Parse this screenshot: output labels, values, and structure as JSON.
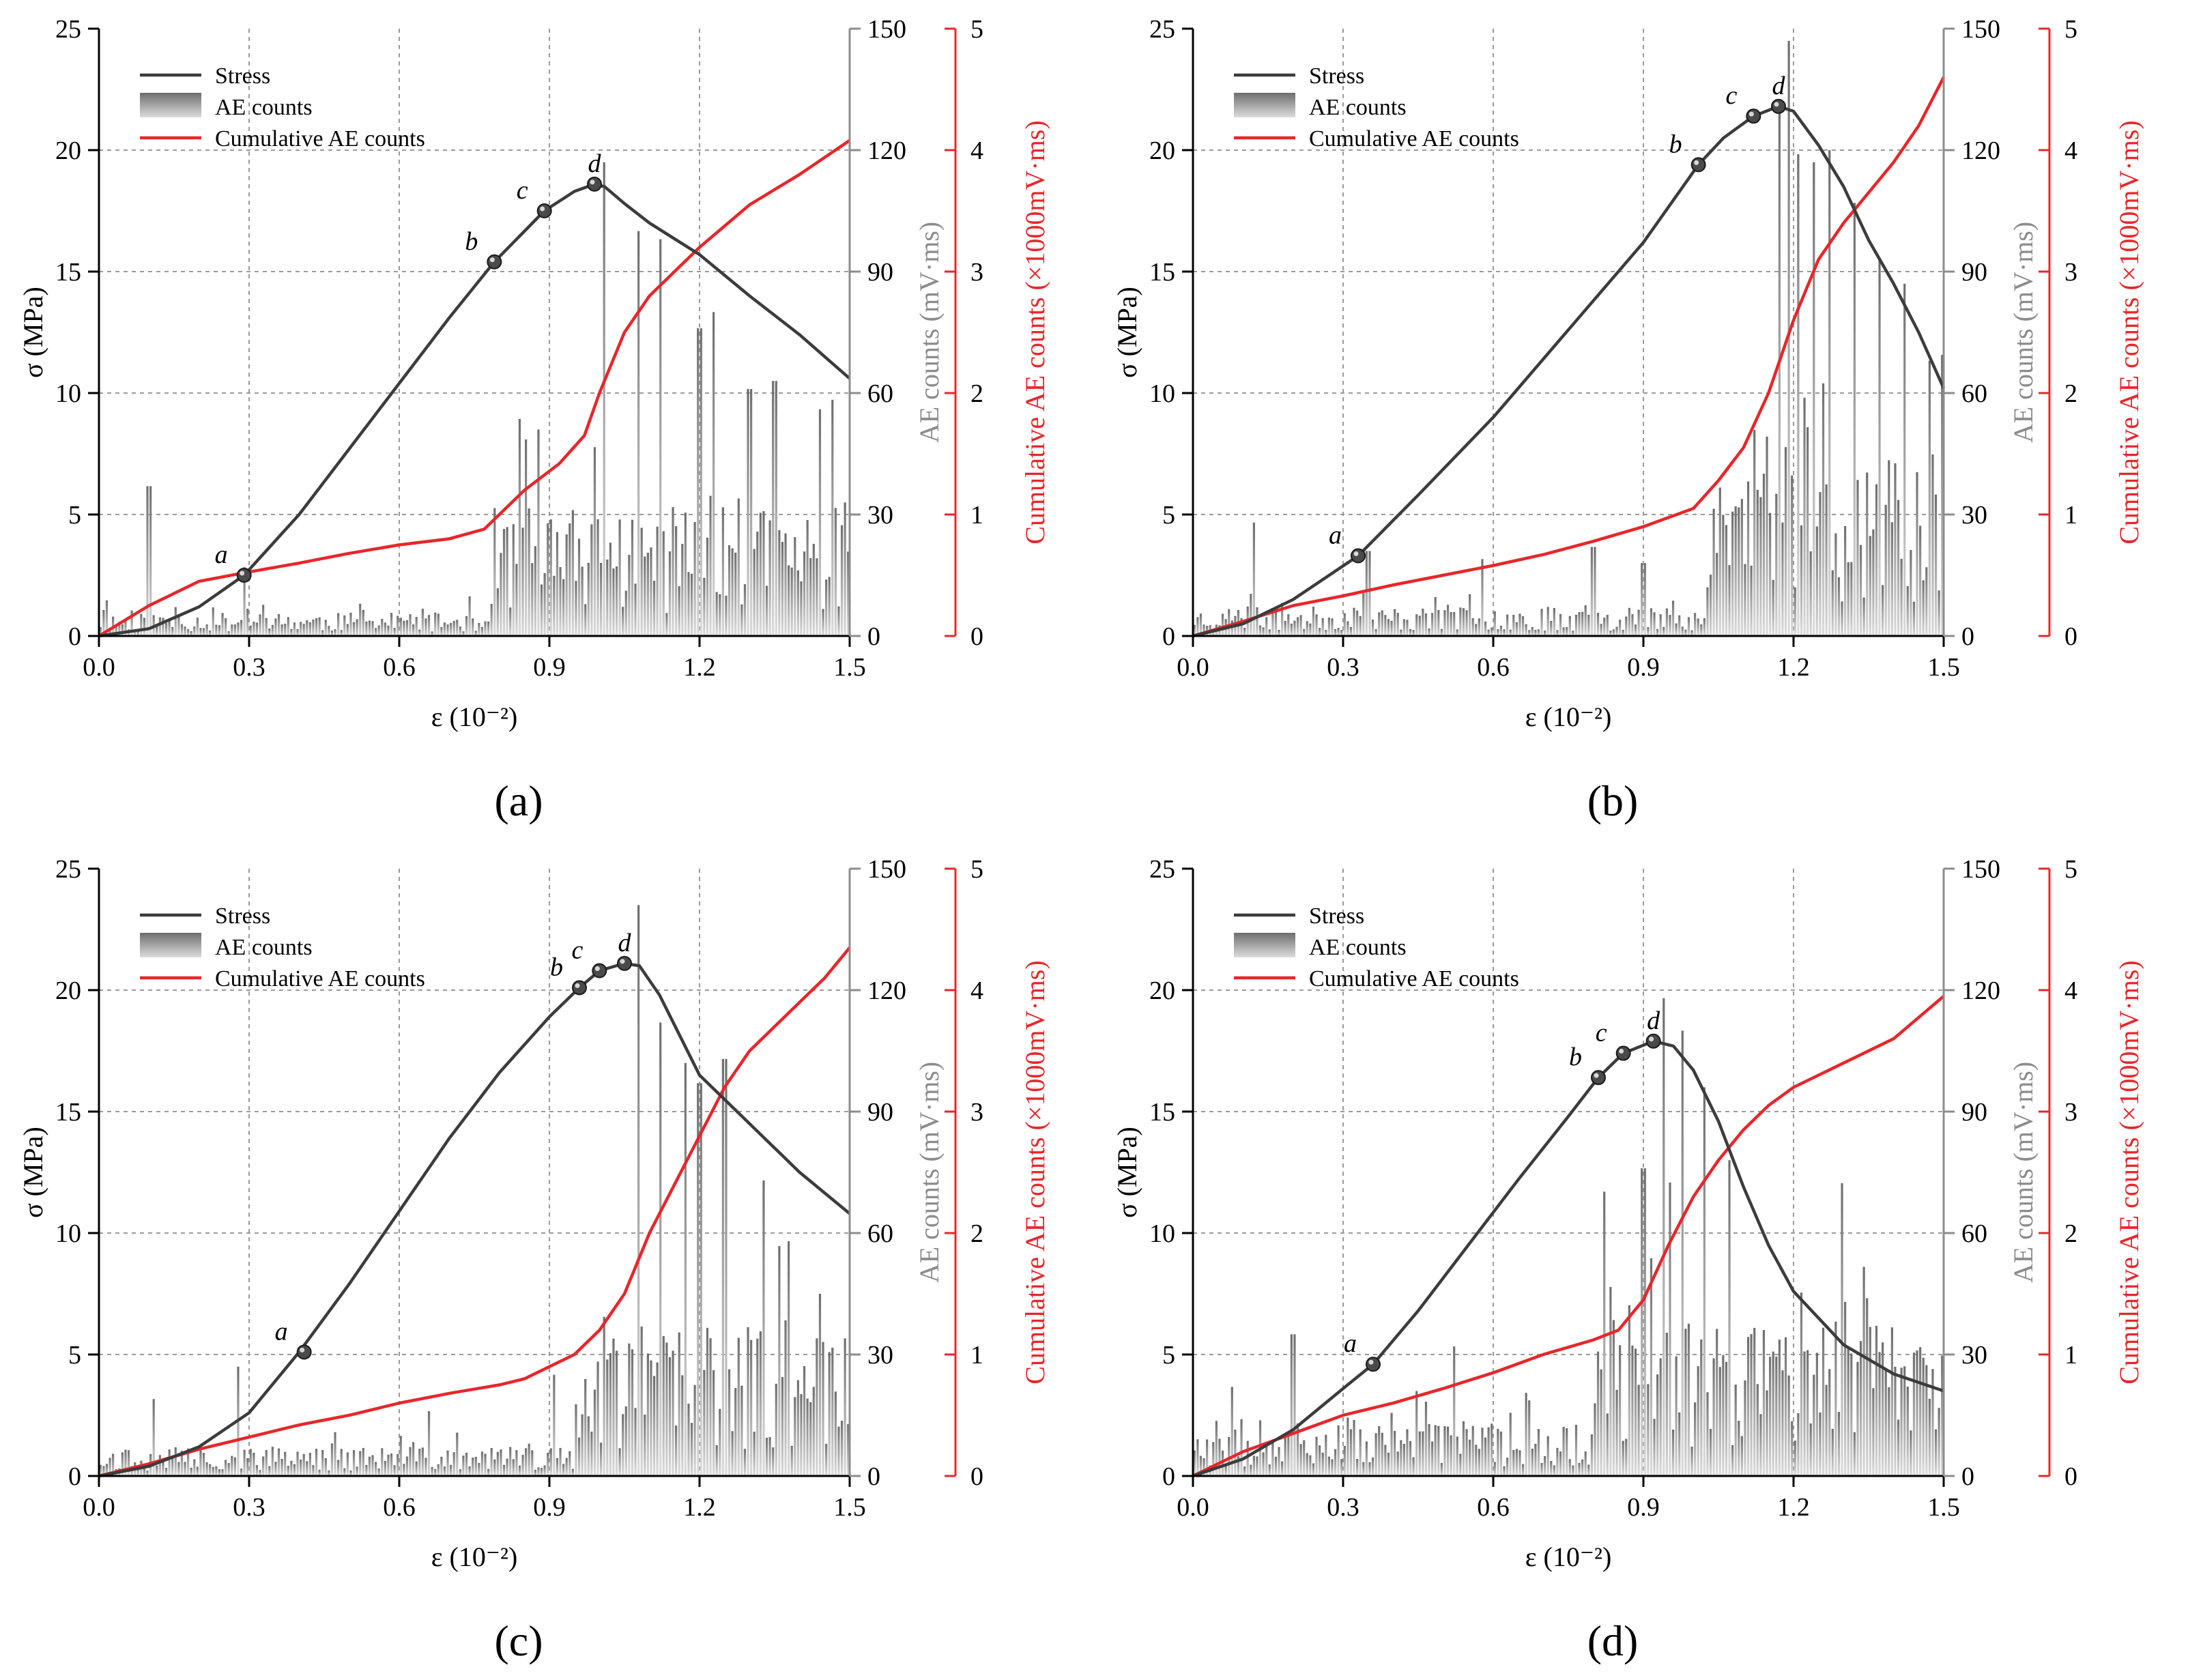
{
  "chart_data": [
    {
      "type": "line",
      "panel_label": "(a)",
      "panel_letter": "a",
      "xlabel": "ε (10⁻²)",
      "ylabel": "σ (MPa)",
      "y2label": "AE counts (mV·ms)",
      "y3label": "Cumulative AE counts (×1000mV·ms)",
      "xlim": [
        0,
        1.5
      ],
      "ylim": [
        0,
        25
      ],
      "y2lim": [
        0,
        150
      ],
      "y3lim": [
        0,
        5
      ],
      "xticks": [
        "0.0",
        "0.3",
        "0.6",
        "0.9",
        "1.2",
        "1.5"
      ],
      "yticks": [
        "0",
        "5",
        "10",
        "15",
        "20",
        "25"
      ],
      "y2ticks": [
        "0",
        "30",
        "60",
        "90",
        "120",
        "150"
      ],
      "y3ticks": [
        "0",
        "1",
        "2",
        "3",
        "4",
        "5"
      ],
      "grid": true,
      "legend_position": "top-left",
      "legend": [
        "Stress",
        "AE counts",
        "Cumulative AE counts"
      ],
      "colors": {
        "stress": "#3c3c3c",
        "ae": "#8a8a8a",
        "cumulative": "#e8262a",
        "y2axis": "#8c8c8c",
        "y3axis": "#e8262a"
      },
      "stress": {
        "x": [
          0,
          0.1,
          0.2,
          0.29,
          0.4,
          0.5,
          0.6,
          0.7,
          0.79,
          0.89,
          0.95,
          0.99,
          1.01,
          1.05,
          1.1,
          1.2,
          1.3,
          1.4,
          1.5
        ],
        "y": [
          0,
          0.3,
          1.2,
          2.5,
          5,
          7.7,
          10.4,
          13.1,
          15.4,
          17.5,
          18.3,
          18.6,
          18.5,
          17.8,
          17.0,
          15.7,
          14.0,
          12.4,
          10.6
        ]
      },
      "cumulative": {
        "x": [
          0,
          0.1,
          0.2,
          0.29,
          0.4,
          0.5,
          0.6,
          0.7,
          0.77,
          0.85,
          0.92,
          0.97,
          1.0,
          1.05,
          1.1,
          1.2,
          1.3,
          1.4,
          1.5
        ],
        "y": [
          0,
          0.25,
          0.45,
          0.52,
          0.6,
          0.68,
          0.75,
          0.8,
          0.88,
          1.2,
          1.42,
          1.65,
          2.0,
          2.5,
          2.8,
          3.2,
          3.55,
          3.8,
          4.08
        ]
      },
      "key_points": [
        {
          "label": "a",
          "x": 0.29,
          "y": 2.5
        },
        {
          "label": "b",
          "x": 0.79,
          "y": 15.4
        },
        {
          "label": "c",
          "x": 0.89,
          "y": 17.5
        },
        {
          "label": "d",
          "x": 0.99,
          "y": 18.6
        }
      ],
      "ae": {
        "x_start": 0.0,
        "x_end": 1.5,
        "n": 240,
        "base_before": 4,
        "base_after": 22,
        "jump_at": 0.78,
        "noise": 0.8,
        "seed": 11,
        "spikes": [
          {
            "x": 0.1,
            "v": 37
          },
          {
            "x": 0.29,
            "v": 17
          },
          {
            "x": 0.88,
            "v": 51
          },
          {
            "x": 1.01,
            "v": 117
          },
          {
            "x": 1.08,
            "v": 100
          },
          {
            "x": 1.12,
            "v": 98
          },
          {
            "x": 1.2,
            "v": 76
          },
          {
            "x": 1.23,
            "v": 80
          },
          {
            "x": 1.3,
            "v": 61
          },
          {
            "x": 1.35,
            "v": 63
          },
          {
            "x": 1.44,
            "v": 56
          },
          {
            "x": 1.49,
            "v": 33
          }
        ]
      }
    },
    {
      "type": "line",
      "panel_label": "(b)",
      "panel_letter": "b",
      "xlabel": "ε (10⁻²)",
      "ylabel": "σ (MPa)",
      "y2label": "AE counts (mV·ms)",
      "y3label": "Cumulative AE counts (×1000mV·ms)",
      "xlim": [
        0,
        1.5
      ],
      "ylim": [
        0,
        25
      ],
      "y2lim": [
        0,
        150
      ],
      "y3lim": [
        0,
        5
      ],
      "xticks": [
        "0.0",
        "0.3",
        "0.6",
        "0.9",
        "1.2",
        "1.5"
      ],
      "yticks": [
        "0",
        "5",
        "10",
        "15",
        "20",
        "25"
      ],
      "y2ticks": [
        "0",
        "30",
        "60",
        "90",
        "120",
        "150"
      ],
      "y3ticks": [
        "0",
        "1",
        "2",
        "3",
        "4",
        "5"
      ],
      "grid": true,
      "legend_position": "top-left",
      "legend": [
        "Stress",
        "AE counts",
        "Cumulative AE counts"
      ],
      "colors": {
        "stress": "#3c3c3c",
        "ae": "#8a8a8a",
        "cumulative": "#e8262a",
        "y2axis": "#8c8c8c",
        "y3axis": "#e8262a"
      },
      "stress": {
        "x": [
          0,
          0.1,
          0.2,
          0.33,
          0.45,
          0.6,
          0.75,
          0.9,
          1.01,
          1.06,
          1.12,
          1.17,
          1.2,
          1.25,
          1.3,
          1.35,
          1.4,
          1.45,
          1.5
        ],
        "y": [
          0,
          0.5,
          1.5,
          3.3,
          5.8,
          9.0,
          12.6,
          16.2,
          19.4,
          20.5,
          21.4,
          21.8,
          21.6,
          20.2,
          18.5,
          16.3,
          14.5,
          12.5,
          10.2
        ]
      },
      "cumulative": {
        "x": [
          0,
          0.1,
          0.2,
          0.3,
          0.4,
          0.5,
          0.6,
          0.7,
          0.8,
          0.9,
          1.0,
          1.05,
          1.1,
          1.15,
          1.2,
          1.25,
          1.3,
          1.35,
          1.4,
          1.45,
          1.5
        ],
        "y": [
          0,
          0.12,
          0.25,
          0.33,
          0.42,
          0.5,
          0.58,
          0.67,
          0.78,
          0.9,
          1.05,
          1.28,
          1.55,
          2.0,
          2.6,
          3.1,
          3.4,
          3.65,
          3.9,
          4.2,
          4.6
        ]
      },
      "key_points": [
        {
          "label": "a",
          "x": 0.33,
          "y": 3.3
        },
        {
          "label": "b",
          "x": 1.01,
          "y": 19.4
        },
        {
          "label": "c",
          "x": 1.12,
          "y": 21.4
        },
        {
          "label": "d",
          "x": 1.17,
          "y": 21.8
        }
      ],
      "ae": {
        "x_start": 0.0,
        "x_end": 1.5,
        "n": 240,
        "base_before": 5,
        "base_after": 32,
        "jump_at": 1.03,
        "noise": 0.8,
        "seed": 23,
        "spikes": [
          {
            "x": 0.12,
            "v": 28
          },
          {
            "x": 0.35,
            "v": 21
          },
          {
            "x": 0.58,
            "v": 19
          },
          {
            "x": 0.8,
            "v": 22
          },
          {
            "x": 0.9,
            "v": 18
          },
          {
            "x": 1.17,
            "v": 130
          },
          {
            "x": 1.19,
            "v": 147
          },
          {
            "x": 1.21,
            "v": 119
          },
          {
            "x": 1.24,
            "v": 117
          },
          {
            "x": 1.27,
            "v": 120
          },
          {
            "x": 1.32,
            "v": 107
          },
          {
            "x": 1.37,
            "v": 93
          },
          {
            "x": 1.42,
            "v": 87
          },
          {
            "x": 1.47,
            "v": 68
          }
        ]
      }
    },
    {
      "type": "line",
      "panel_label": "(c)",
      "panel_letter": "c",
      "xlabel": "ε (10⁻²)",
      "ylabel": "σ (MPa)",
      "y2label": "AE counts (mV·ms)",
      "y3label": "Cumulative AE counts (×1000mV·ms)",
      "xlim": [
        0,
        1.5
      ],
      "ylim": [
        0,
        25
      ],
      "y2lim": [
        0,
        150
      ],
      "y3lim": [
        0,
        5
      ],
      "xticks": [
        "0.0",
        "0.3",
        "0.6",
        "0.9",
        "1.2",
        "1.5"
      ],
      "yticks": [
        "0",
        "5",
        "10",
        "15",
        "20",
        "25"
      ],
      "y2ticks": [
        "0",
        "30",
        "60",
        "90",
        "120",
        "150"
      ],
      "y3ticks": [
        "0",
        "1",
        "2",
        "3",
        "4",
        "5"
      ],
      "grid": true,
      "legend_position": "top-left",
      "legend": [
        "Stress",
        "AE counts",
        "Cumulative AE counts"
      ],
      "colors": {
        "stress": "#3c3c3c",
        "ae": "#8a8a8a",
        "cumulative": "#e8262a",
        "y2axis": "#8c8c8c",
        "y3axis": "#e8262a"
      },
      "stress": {
        "x": [
          0,
          0.1,
          0.2,
          0.3,
          0.4,
          0.5,
          0.6,
          0.7,
          0.8,
          0.9,
          0.96,
          1.0,
          1.05,
          1.08,
          1.12,
          1.2,
          1.3,
          1.4,
          1.5
        ],
        "y": [
          0,
          0.4,
          1.2,
          2.6,
          5.1,
          7.9,
          10.9,
          13.9,
          16.6,
          18.9,
          20.1,
          20.8,
          21.1,
          21.0,
          19.8,
          16.5,
          14.5,
          12.5,
          10.8
        ]
      },
      "cumulative": {
        "x": [
          0,
          0.1,
          0.2,
          0.3,
          0.4,
          0.5,
          0.6,
          0.7,
          0.8,
          0.85,
          0.9,
          0.95,
          1.0,
          1.05,
          1.1,
          1.15,
          1.2,
          1.25,
          1.3,
          1.35,
          1.4,
          1.45,
          1.5
        ],
        "y": [
          0,
          0.1,
          0.22,
          0.32,
          0.42,
          0.5,
          0.6,
          0.68,
          0.75,
          0.8,
          0.9,
          1.0,
          1.2,
          1.5,
          2.0,
          2.4,
          2.8,
          3.2,
          3.5,
          3.7,
          3.9,
          4.1,
          4.35
        ]
      },
      "key_points": [
        {
          "label": "a",
          "x": 0.41,
          "y": 5.1
        },
        {
          "label": "b",
          "x": 0.96,
          "y": 20.1
        },
        {
          "label": "c",
          "x": 1.0,
          "y": 20.8
        },
        {
          "label": "d",
          "x": 1.05,
          "y": 21.1
        }
      ],
      "ae": {
        "x_start": 0.0,
        "x_end": 1.5,
        "n": 240,
        "base_before": 5,
        "base_after": 26,
        "jump_at": 0.95,
        "noise": 0.8,
        "seed": 37,
        "spikes": [
          {
            "x": 0.11,
            "v": 19
          },
          {
            "x": 0.28,
            "v": 27
          },
          {
            "x": 0.66,
            "v": 16
          },
          {
            "x": 0.91,
            "v": 25
          },
          {
            "x": 1.08,
            "v": 141
          },
          {
            "x": 1.12,
            "v": 112
          },
          {
            "x": 1.17,
            "v": 102
          },
          {
            "x": 1.2,
            "v": 97
          },
          {
            "x": 1.25,
            "v": 103
          },
          {
            "x": 1.33,
            "v": 73
          },
          {
            "x": 1.38,
            "v": 58
          },
          {
            "x": 1.44,
            "v": 45
          },
          {
            "x": 1.49,
            "v": 34
          }
        ]
      }
    },
    {
      "type": "line",
      "panel_label": "(d)",
      "panel_letter": "d",
      "xlabel": "ε (10⁻²)",
      "ylabel": "σ (MPa)",
      "y2label": "AE counts (mV·ms)",
      "y3label": "Cumulative AE counts (×1000mV·ms)",
      "xlim": [
        0,
        1.5
      ],
      "ylim": [
        0,
        25
      ],
      "y2lim": [
        0,
        150
      ],
      "y3lim": [
        0,
        5
      ],
      "xticks": [
        "0.0",
        "0.3",
        "0.6",
        "0.9",
        "1.2",
        "1.5"
      ],
      "yticks": [
        "0",
        "5",
        "10",
        "15",
        "20",
        "25"
      ],
      "y2ticks": [
        "0",
        "30",
        "60",
        "90",
        "120",
        "150"
      ],
      "y3ticks": [
        "0",
        "1",
        "2",
        "3",
        "4",
        "5"
      ],
      "grid": true,
      "legend_position": "top-left",
      "legend": [
        "Stress",
        "AE counts",
        "Cumulative AE counts"
      ],
      "colors": {
        "stress": "#3c3c3c",
        "ae": "#8a8a8a",
        "cumulative": "#e8262a",
        "y2axis": "#8c8c8c",
        "y3axis": "#e8262a"
      },
      "stress": {
        "x": [
          0,
          0.1,
          0.2,
          0.3,
          0.36,
          0.45,
          0.55,
          0.65,
          0.75,
          0.81,
          0.86,
          0.92,
          0.96,
          1.0,
          1.05,
          1.1,
          1.15,
          1.2,
          1.3,
          1.4,
          1.5
        ],
        "y": [
          0,
          0.7,
          1.9,
          3.6,
          4.6,
          6.8,
          9.5,
          12.2,
          14.8,
          16.4,
          17.4,
          17.9,
          17.7,
          16.7,
          14.6,
          11.9,
          9.5,
          7.6,
          5.4,
          4.2,
          3.5
        ]
      },
      "cumulative": {
        "x": [
          0,
          0.1,
          0.2,
          0.3,
          0.4,
          0.5,
          0.6,
          0.7,
          0.8,
          0.85,
          0.9,
          0.95,
          1.0,
          1.05,
          1.1,
          1.15,
          1.2,
          1.3,
          1.4,
          1.5
        ],
        "y": [
          0,
          0.2,
          0.35,
          0.5,
          0.6,
          0.72,
          0.85,
          1.0,
          1.12,
          1.2,
          1.45,
          1.9,
          2.3,
          2.6,
          2.85,
          3.05,
          3.2,
          3.4,
          3.6,
          3.95
        ]
      },
      "key_points": [
        {
          "label": "a",
          "x": 0.36,
          "y": 4.6
        },
        {
          "label": "b",
          "x": 0.81,
          "y": 16.4
        },
        {
          "label": "c",
          "x": 0.86,
          "y": 17.4
        },
        {
          "label": "d",
          "x": 0.92,
          "y": 17.9
        }
      ],
      "ae": {
        "x_start": 0.0,
        "x_end": 1.5,
        "n": 240,
        "base_before": 9,
        "base_after": 28,
        "jump_at": 0.8,
        "noise": 0.8,
        "seed": 53,
        "spikes": [
          {
            "x": 0.08,
            "v": 22
          },
          {
            "x": 0.2,
            "v": 35
          },
          {
            "x": 0.52,
            "v": 32
          },
          {
            "x": 0.9,
            "v": 76
          },
          {
            "x": 0.94,
            "v": 118
          },
          {
            "x": 0.98,
            "v": 110
          },
          {
            "x": 1.02,
            "v": 96
          },
          {
            "x": 1.07,
            "v": 78
          },
          {
            "x": 1.3,
            "v": 43
          },
          {
            "x": 1.38,
            "v": 33
          },
          {
            "x": 1.45,
            "v": 31
          }
        ]
      }
    }
  ]
}
